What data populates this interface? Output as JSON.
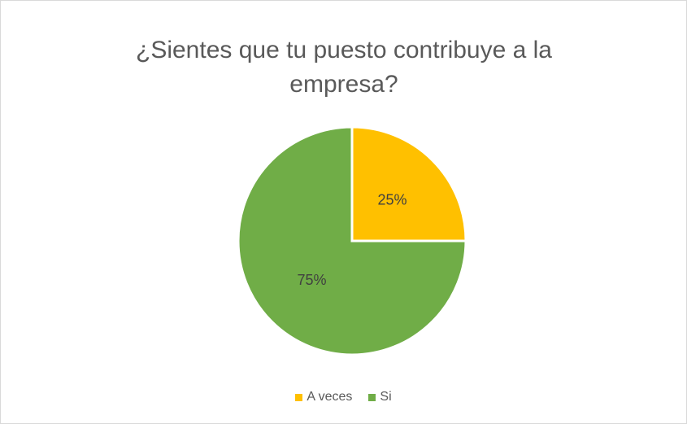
{
  "chart_data": {
    "type": "pie",
    "title": "¿Sientes que tu puesto contribuye a la empresa?",
    "categories": [
      "A veces",
      "Si"
    ],
    "values": [
      25,
      75
    ],
    "value_labels": [
      "25%",
      "75%"
    ],
    "colors": [
      "#FFC000",
      "#70AD47"
    ],
    "legend": "bottom"
  }
}
